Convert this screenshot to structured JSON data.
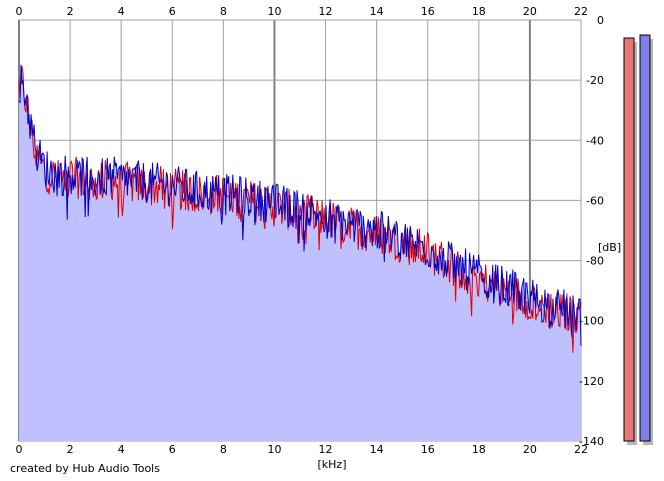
{
  "credit": "created by Hub Audio Tools",
  "chart_data": {
    "type": "area",
    "xlabel": "[kHz]",
    "ylabel": "[dB]",
    "xlim": [
      0,
      22
    ],
    "ylim": [
      -140,
      0
    ],
    "x_ticks": [
      0,
      2,
      4,
      6,
      8,
      10,
      12,
      14,
      16,
      18,
      20,
      22
    ],
    "y_ticks": [
      0,
      -20,
      -40,
      -60,
      -80,
      -100,
      -120,
      -140
    ],
    "grid": true,
    "colors": {
      "channel1": "#e00000",
      "channel2": "#0000c8",
      "area_fill": "#c0c0ff",
      "grid": "#a0a0a0",
      "grid_major": "#808080"
    },
    "series": [
      {
        "x": [
          0,
          0.1,
          0.3,
          0.5,
          0.7,
          1,
          1.5,
          2,
          2.5,
          3,
          3.5,
          4,
          5,
          6,
          7,
          8,
          9,
          10,
          11,
          12,
          13,
          14,
          15,
          16,
          17,
          18,
          19,
          20,
          21,
          22
        ],
        "values": [
          -22,
          -20,
          -28,
          -38,
          -45,
          -50,
          -53,
          -52,
          -53,
          -54,
          -53,
          -54,
          -55,
          -56,
          -58,
          -58,
          -60,
          -62,
          -64,
          -66,
          -69,
          -71,
          -74,
          -77,
          -82,
          -86,
          -90,
          -93,
          -97,
          -98
        ]
      },
      {
        "x": [
          0,
          0.1,
          0.3,
          0.5,
          0.7,
          1,
          1.5,
          2,
          2.5,
          3,
          3.5,
          4,
          5,
          6,
          7,
          8,
          9,
          10,
          11,
          12,
          13,
          14,
          15,
          16,
          17,
          18,
          19,
          20,
          21,
          22
        ],
        "values": [
          -20,
          -18,
          -27,
          -37,
          -44,
          -49,
          -52,
          -51,
          -52,
          -53,
          -52,
          -53,
          -54,
          -55,
          -57,
          -58,
          -59,
          -61,
          -63,
          -65,
          -68,
          -70,
          -73,
          -76,
          -81,
          -85,
          -89,
          -92,
          -96,
          -97
        ]
      }
    ],
    "level_meters": [
      {
        "color": "#e87878",
        "level_db": -6
      },
      {
        "color": "#8080e8",
        "level_db": -5
      }
    ]
  }
}
